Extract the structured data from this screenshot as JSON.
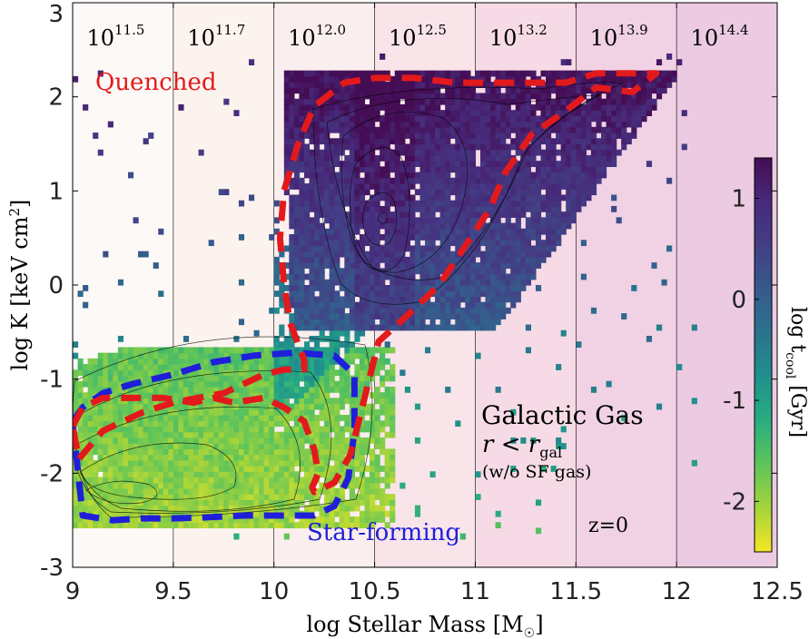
{
  "chart_data": {
    "type": "heatmap",
    "title": "",
    "xlabel": "log Stellar Mass [M",
    "xlabel_unit_symbol": "☉",
    "xlabel_suffix": "]",
    "ylabel": "log K [keV cm",
    "ylabel_exp": "2",
    "ylabel_suffix": "]",
    "xlim": [
      9,
      12.5
    ],
    "ylim": [
      -3,
      3
    ],
    "x_ticks": [
      9,
      9.5,
      10,
      10.5,
      11,
      11.5,
      12,
      12.5
    ],
    "x_tick_labels": [
      "9",
      "9.5",
      "10",
      "10.5",
      "11",
      "11.5",
      "12",
      "12.5"
    ],
    "y_ticks": [
      -3,
      -2,
      -1,
      0,
      1,
      2,
      3
    ],
    "y_tick_labels": [
      "-3",
      "-2",
      "-1",
      "0",
      "1",
      "2",
      "3"
    ],
    "halo_mass_bands": [
      {
        "x0": 9.0,
        "x1": 9.5,
        "label_base": "10",
        "label_exp": "11.5",
        "color": "#fdf9f7"
      },
      {
        "x0": 9.5,
        "x1": 10.0,
        "label_base": "10",
        "label_exp": "11.7",
        "color": "#fcf3ef"
      },
      {
        "x0": 10.0,
        "x1": 10.5,
        "label_base": "10",
        "label_exp": "12.0",
        "color": "#fbeeee"
      },
      {
        "x0": 10.5,
        "x1": 11.0,
        "label_base": "10",
        "label_exp": "12.5",
        "color": "#f9e4ea"
      },
      {
        "x0": 11.0,
        "x1": 11.5,
        "label_base": "10",
        "label_exp": "13.2",
        "color": "#f6dbe6"
      },
      {
        "x0": 11.5,
        "x1": 12.0,
        "label_base": "10",
        "label_exp": "13.9",
        "color": "#f0d2e4"
      },
      {
        "x0": 12.0,
        "x1": 12.5,
        "label_base": "10",
        "label_exp": "14.4",
        "color": "#ebcae2"
      }
    ],
    "colorbar": {
      "label": "log t",
      "label_sub": "cool",
      "label_suffix": " [Gyr]",
      "range": [
        -2.5,
        1.4
      ],
      "ticks": [
        1,
        0,
        -1,
        -2
      ],
      "tick_labels": [
        "1",
        "0",
        "-1",
        "-2"
      ],
      "colors": [
        "#f5e626",
        "#a5d43b",
        "#5ec45a",
        "#29ad80",
        "#20908c",
        "#2b738e",
        "#365a8c",
        "#433e85",
        "#472a7a",
        "#440d54"
      ]
    },
    "quenched_contour": {
      "name": "Quenched",
      "color": "#e31a1c",
      "x": [
        9.0,
        9.05,
        9.15,
        9.3,
        9.45,
        9.6,
        9.7,
        9.8,
        9.95,
        10.05,
        10.15,
        10.2,
        10.22,
        10.19,
        10.2,
        10.3,
        10.38,
        10.52,
        10.7,
        10.82,
        10.93,
        11.07,
        11.15,
        11.28,
        11.45,
        11.6,
        11.78,
        11.9,
        11.78,
        11.6,
        11.45,
        11.3,
        11.1,
        10.9,
        10.7,
        10.5,
        10.35,
        10.2,
        10.12,
        10.05,
        10.03,
        10.05,
        10.08,
        10.15,
        10.15,
        10.05,
        9.95,
        9.85,
        9.75,
        9.62,
        9.5,
        9.35,
        9.25,
        9.15,
        9.07,
        9.03,
        9.0
      ],
      "y": [
        -1.5,
        -1.3,
        -1.2,
        -1.2,
        -1.2,
        -1.25,
        -1.2,
        -1.25,
        -1.2,
        -1.3,
        -1.45,
        -1.75,
        -2.0,
        -2.15,
        -2.2,
        -2.1,
        -1.8,
        -0.6,
        -0.25,
        0.0,
        0.35,
        0.8,
        1.2,
        1.6,
        1.85,
        2.1,
        2.05,
        2.25,
        2.25,
        2.25,
        2.15,
        2.15,
        2.15,
        2.15,
        2.2,
        2.2,
        2.15,
        1.9,
        1.5,
        1.0,
        0.5,
        0.0,
        -0.4,
        -0.8,
        -0.9,
        -0.9,
        -0.95,
        -1.05,
        -1.15,
        -1.2,
        -1.25,
        -1.35,
        -1.45,
        -1.55,
        -1.75,
        -1.85,
        -1.5
      ]
    },
    "starforming_contour": {
      "name": "Star-forming",
      "color": "#1f1fd9",
      "x": [
        9.0,
        9.05,
        9.15,
        9.3,
        9.5,
        9.7,
        9.9,
        10.1,
        10.3,
        10.4,
        10.4,
        10.37,
        10.3,
        10.2,
        10.05,
        9.85,
        9.65,
        9.5,
        9.35,
        9.2,
        9.05,
        9.0
      ],
      "y": [
        -1.45,
        -1.3,
        -1.15,
        -1.05,
        -0.95,
        -0.82,
        -0.75,
        -0.72,
        -0.75,
        -0.95,
        -1.55,
        -2.05,
        -2.35,
        -2.45,
        -2.45,
        -2.45,
        -2.47,
        -2.48,
        -2.48,
        -2.5,
        -2.45,
        -1.45
      ]
    },
    "annotations": {
      "quenched": "Quenched",
      "starforming": "Star-forming",
      "galactic_gas": "Galactic Gas",
      "radius_r": "r",
      "radius_sym": " < ",
      "radius_rgal": "r",
      "radius_sub": "gal",
      "note": "(w/o SF gas)",
      "redshift": "z=0"
    }
  }
}
